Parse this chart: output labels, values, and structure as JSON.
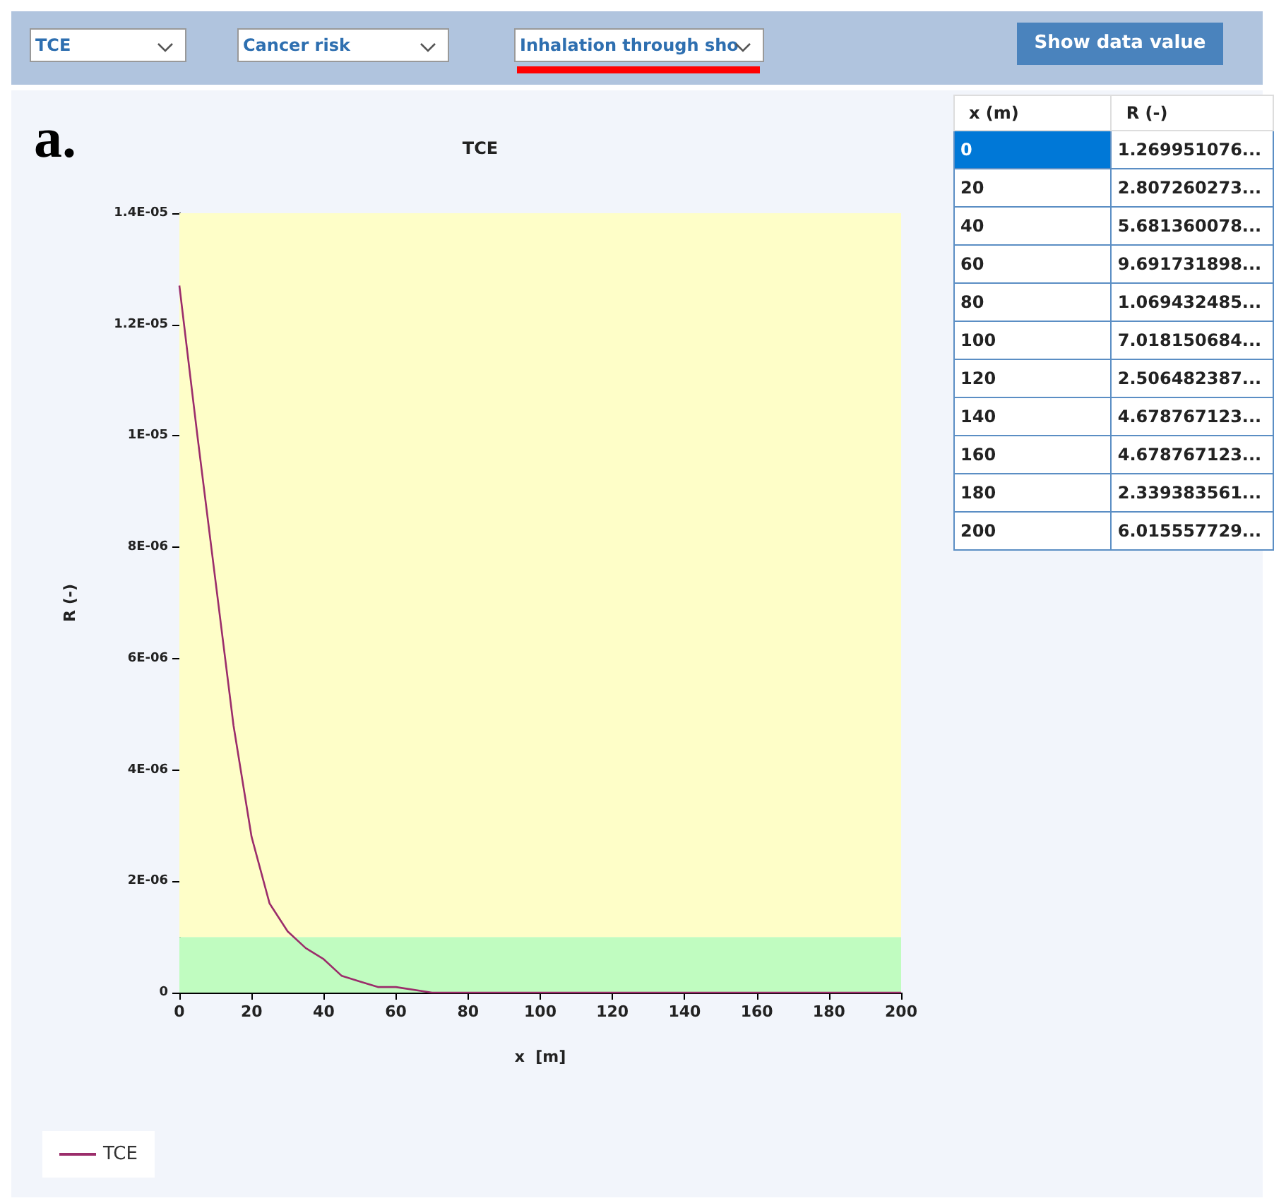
{
  "chart_data": {
    "type": "line",
    "title": "TCE",
    "xlabel": "x  [m]",
    "ylabel": "R (-)",
    "series": [
      {
        "name": "TCE",
        "color": "#9b2d6b",
        "x": [
          0,
          5,
          10,
          15,
          20,
          25,
          30,
          35,
          40,
          45,
          50,
          55,
          60,
          70,
          80,
          100,
          120,
          140,
          160,
          180,
          200
        ],
        "values": [
          1.27e-05,
          1e-05,
          7.4e-06,
          4.8e-06,
          2.8e-06,
          1.6e-06,
          1.1e-06,
          8e-07,
          6e-07,
          3e-07,
          2e-07,
          1e-07,
          1e-07,
          0,
          0,
          0,
          0,
          0,
          0,
          0,
          0
        ]
      }
    ],
    "xlim": [
      0,
      200
    ],
    "xticks": [
      0,
      20,
      40,
      60,
      80,
      100,
      120,
      140,
      160,
      180,
      200
    ],
    "ylim": [
      0,
      1.4e-05
    ],
    "yticks": [
      0,
      {
        "value": 2e-06,
        "label": "2E-06"
      },
      {
        "value": 4e-06,
        "label": "4E-06"
      },
      {
        "value": 6e-06,
        "label": "6E-06"
      },
      {
        "value": 8e-06,
        "label": "8E-06"
      },
      {
        "value": 1e-05,
        "label": "1E-05"
      },
      {
        "value": 1.2e-05,
        "label": "1.2E-05"
      },
      {
        "value": 1.4e-05,
        "label": "1.4E-05"
      }
    ],
    "bands": [
      {
        "axis": "y",
        "from": 0,
        "to": 1e-06,
        "color": "#c0fcc0"
      },
      {
        "axis": "y",
        "from": 1e-06,
        "to": 1.4e-05,
        "color": "#fefec8"
      }
    ],
    "grid": false,
    "legend": "bottom left",
    "marker": "none",
    "line_style": "solid",
    "annotations": [
      "a.",
      "TCE",
      "Cancer risk",
      "Inhalation through sho",
      "Show data value",
      "x  (m)",
      "R  (-)",
      "0",
      "1.269951076...",
      "20",
      "2.807260273...",
      "40",
      "5.681360078...",
      "60",
      "9.691731898...",
      "80",
      "1.069432485...",
      "100",
      "7.018150684...",
      "120",
      "2.506482387...",
      "140",
      "4.678767123...",
      "160",
      "4.678767123...",
      "180",
      "2.339383561...",
      "200",
      "6.015557729..."
    ]
  }
}
